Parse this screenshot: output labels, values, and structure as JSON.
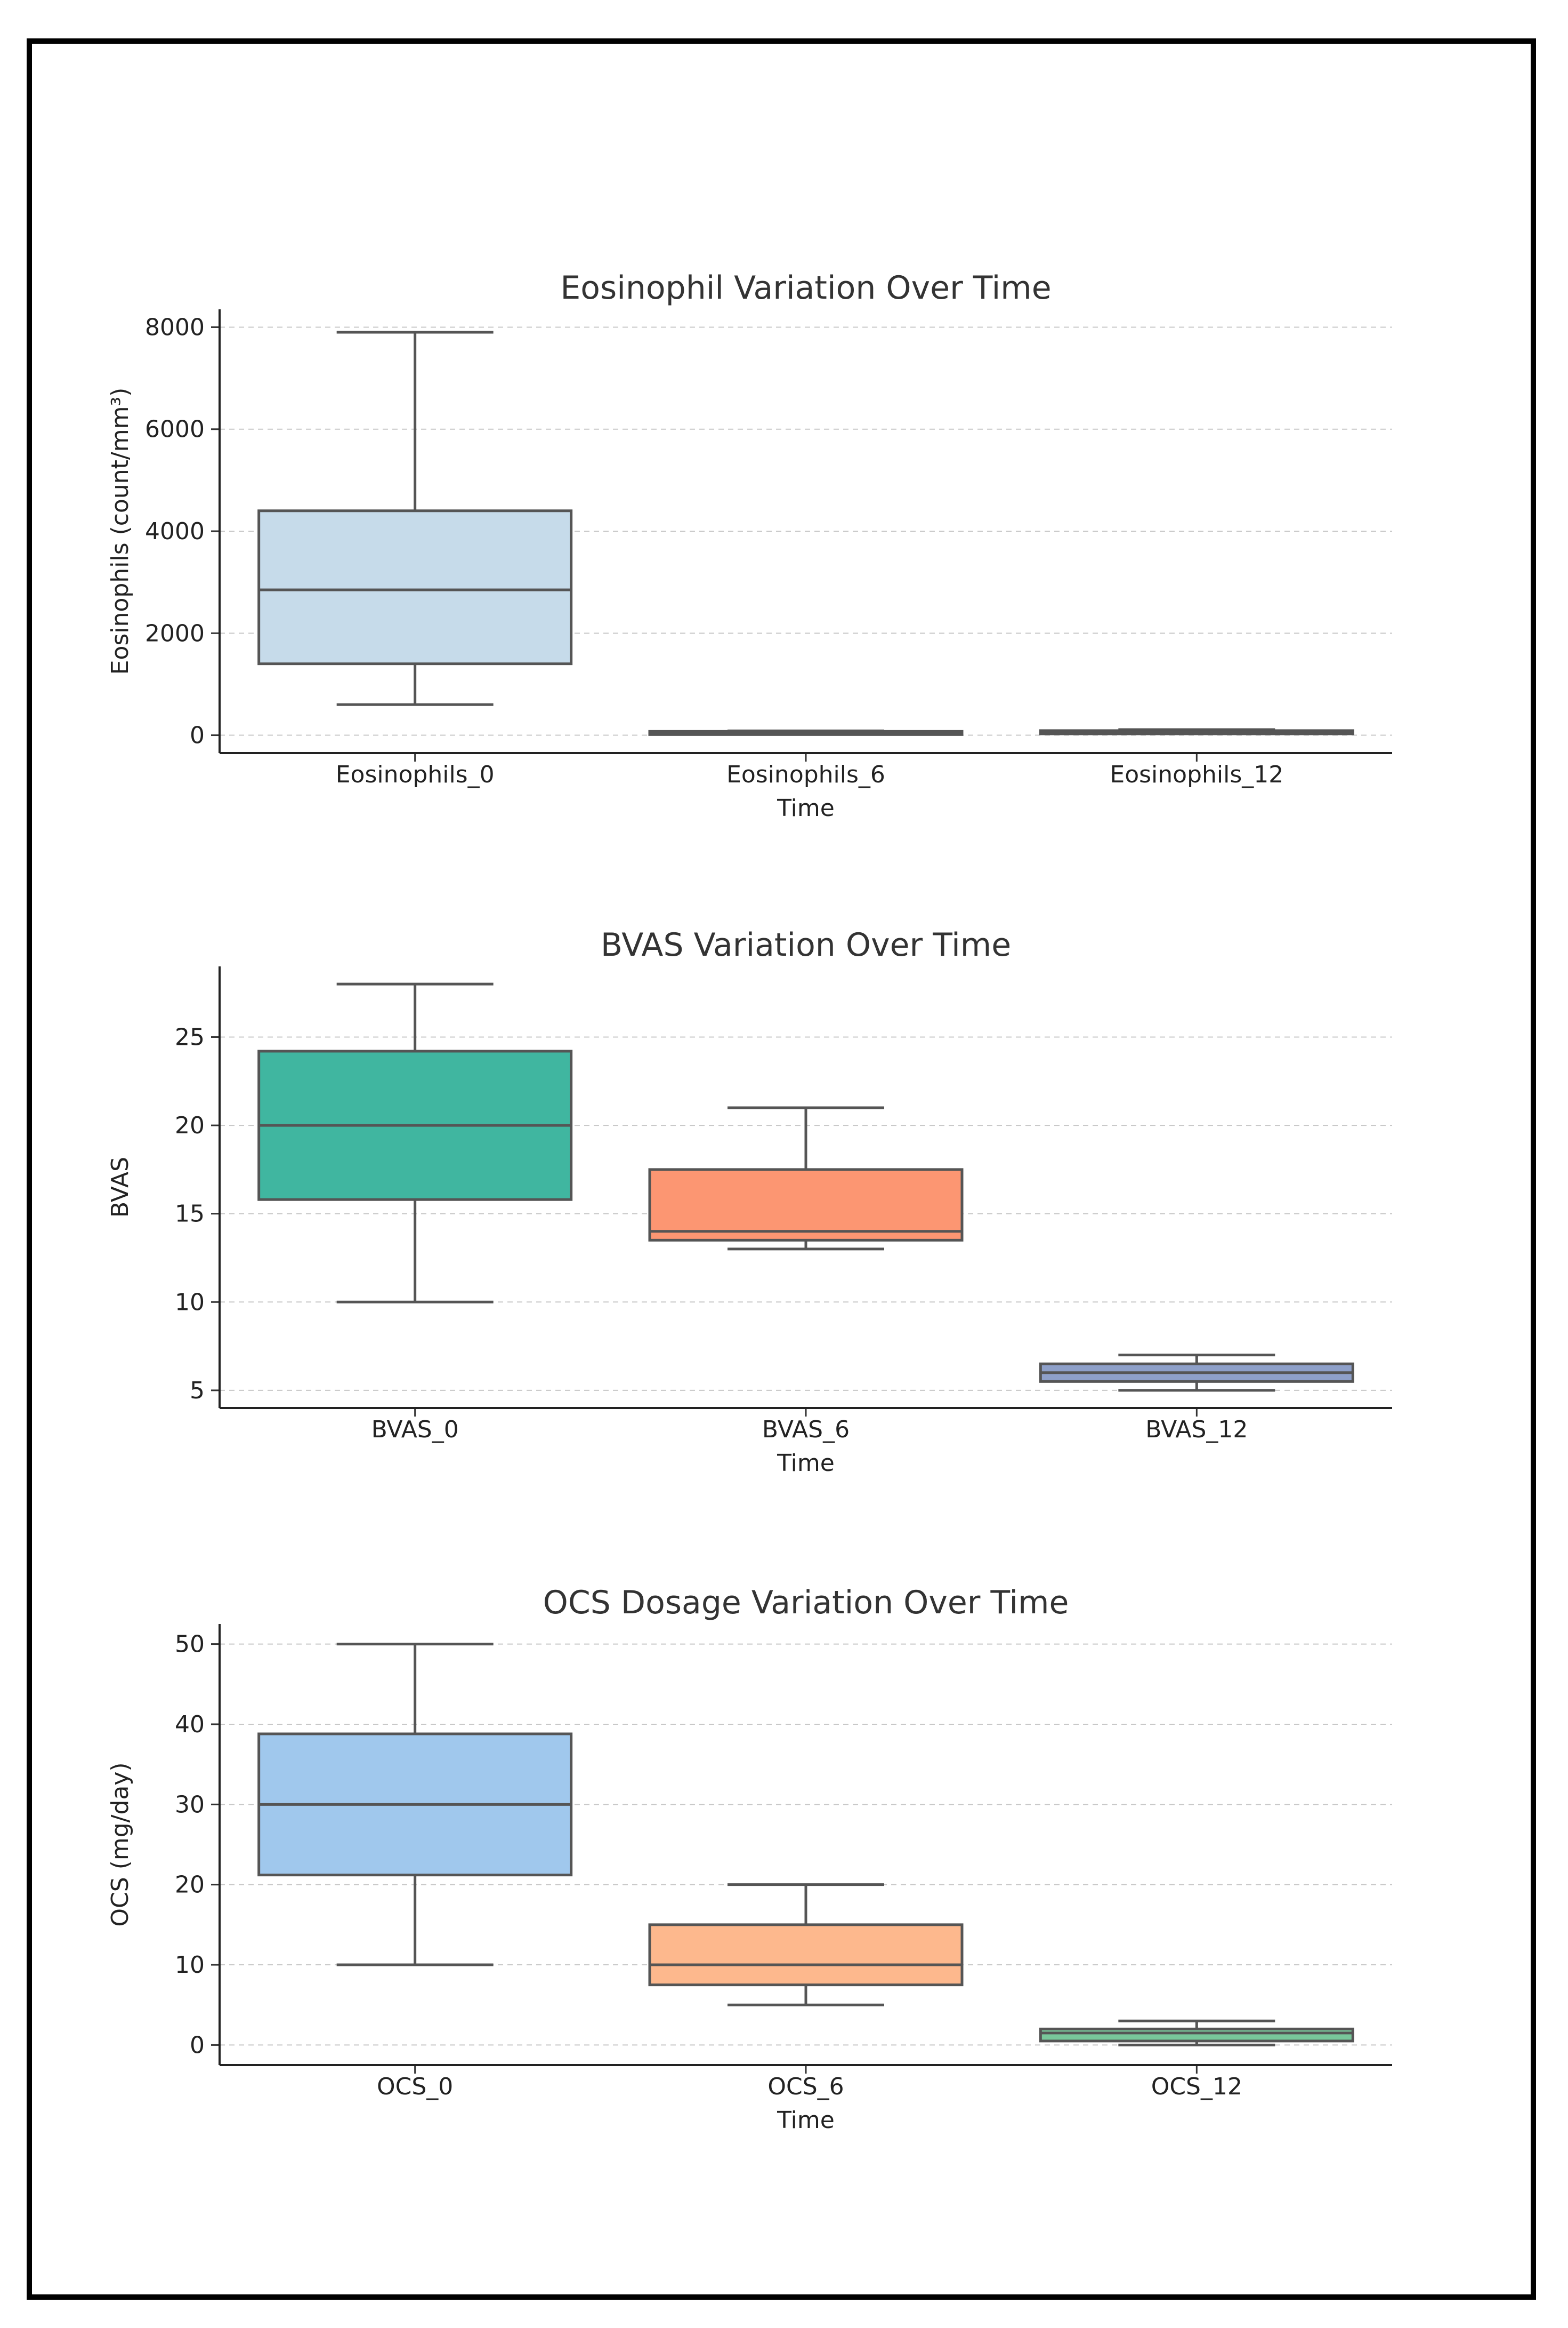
{
  "chart_data": [
    {
      "type": "box",
      "title": "Eosinophil Variation Over Time",
      "xlabel": "Time",
      "ylabel": "Eosinophils (count/mm³)",
      "ylim": [
        -350,
        8350
      ],
      "yticks": [
        0,
        2000,
        4000,
        6000,
        8000
      ],
      "grid": "horizontal-dashed",
      "categories": [
        "Eosinophils_0",
        "Eosinophils_6",
        "Eosinophils_12"
      ],
      "boxes": [
        {
          "whisker_low": 600,
          "q1": 1400,
          "median": 2850,
          "q3": 4400,
          "whisker_high": 7900,
          "color": "#c6dbea"
        },
        {
          "whisker_low": 40,
          "q1": 55,
          "median": 65,
          "q3": 75,
          "whisker_high": 85,
          "color": "#4a8c8c"
        },
        {
          "whisker_low": 40,
          "q1": 55,
          "median": 70,
          "q3": 90,
          "whisker_high": 110,
          "color": "#4a8c8c"
        }
      ]
    },
    {
      "type": "box",
      "title": "BVAS Variation Over Time",
      "xlabel": "Time",
      "ylabel": "BVAS",
      "ylim": [
        4,
        29
      ],
      "yticks": [
        5,
        10,
        15,
        20,
        25
      ],
      "grid": "horizontal-dashed",
      "categories": [
        "BVAS_0",
        "BVAS_6",
        "BVAS_12"
      ],
      "boxes": [
        {
          "whisker_low": 10,
          "q1": 15.8,
          "median": 20,
          "q3": 24.2,
          "whisker_high": 28,
          "color": "#40b6a0"
        },
        {
          "whisker_low": 13,
          "q1": 13.5,
          "median": 14,
          "q3": 17.5,
          "whisker_high": 21,
          "color": "#fc9672"
        },
        {
          "whisker_low": 5,
          "q1": 5.5,
          "median": 6,
          "q3": 6.5,
          "whisker_high": 7,
          "color": "#8ea0c9"
        }
      ]
    },
    {
      "type": "box",
      "title": "OCS Dosage Variation Over Time",
      "xlabel": "Time",
      "ylabel": "OCS (mg/day)",
      "ylim": [
        -2.5,
        52.5
      ],
      "yticks": [
        0,
        10,
        20,
        30,
        40,
        50
      ],
      "grid": "horizontal-dashed",
      "categories": [
        "OCS_0",
        "OCS_6",
        "OCS_12"
      ],
      "boxes": [
        {
          "whisker_low": 10,
          "q1": 21.2,
          "median": 30,
          "q3": 38.8,
          "whisker_high": 50,
          "color": "#a0c8ed"
        },
        {
          "whisker_low": 5,
          "q1": 7.5,
          "median": 10,
          "q3": 15,
          "whisker_high": 20,
          "color": "#fdb88d"
        },
        {
          "whisker_low": 0,
          "q1": 0.5,
          "median": 1.5,
          "q3": 2,
          "whisker_high": 3,
          "color": "#78c79a"
        }
      ]
    }
  ]
}
